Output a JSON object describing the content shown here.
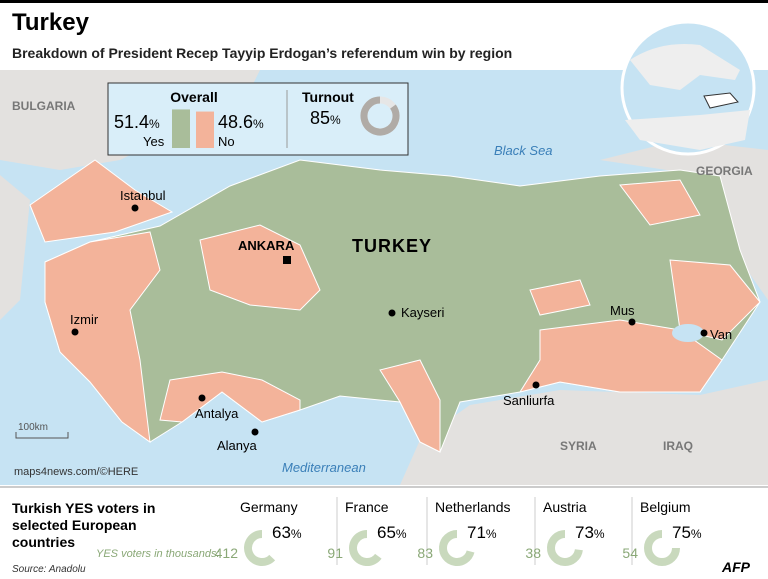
{
  "header": {
    "title": "Turkey",
    "subtitle": "Breakdown of President Recep Tayyip Erdogan’s referendum win by region"
  },
  "unit": "%",
  "overall": {
    "label": "Overall",
    "yes": {
      "value": 51.4,
      "label": "Yes",
      "color": "#a9bd9a"
    },
    "no": {
      "value": 48.6,
      "label": "No",
      "color": "#f3b39a"
    }
  },
  "turnout": {
    "label": "Turnout",
    "value": 85
  },
  "map": {
    "country": "TURKEY",
    "capital": "ANKARA",
    "cities": [
      "Istanbul",
      "Izmir",
      "Antalya",
      "Alanya",
      "Kayseri",
      "Sanliurfa",
      "Mus",
      "Van"
    ],
    "neighbors": [
      "BULGARIA",
      "GEORGIA",
      "SYRIA",
      "IRAQ"
    ],
    "seas": [
      "Black Sea",
      "Mediterranean"
    ],
    "scale": "100km",
    "credit": "maps4news.com/©HERE"
  },
  "europe": {
    "title_lines": [
      "Turkish YES voters in",
      "selected European",
      "countries"
    ],
    "thousands_label": "YES voters in thousands:",
    "countries": [
      {
        "name": "Germany",
        "pct": 63,
        "thousands": 412
      },
      {
        "name": "France",
        "pct": 65,
        "thousands": 91
      },
      {
        "name": "Netherlands",
        "pct": 71,
        "thousands": 83
      },
      {
        "name": "Austria",
        "pct": 73,
        "thousands": 38
      },
      {
        "name": "Belgium",
        "pct": 75,
        "thousands": 54
      }
    ]
  },
  "source": "Source: Anadolu",
  "logo": "AFP"
}
